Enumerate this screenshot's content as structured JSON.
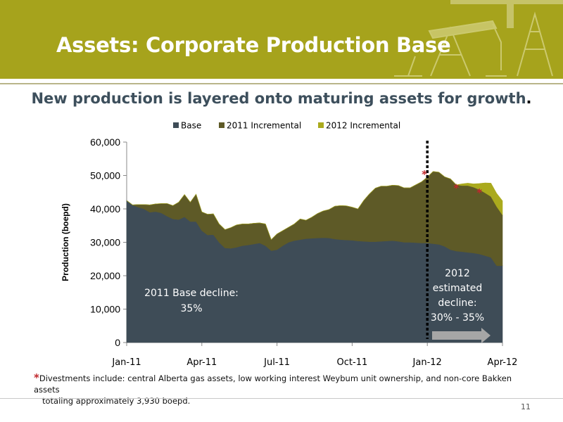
{
  "header": {
    "title": "Assets: Corporate Production Base"
  },
  "subtitle": {
    "text": "New production is layered onto maturing assets for growth",
    "end": "."
  },
  "colors": {
    "base": "#3e4c57",
    "inc2011": "#5e5a27",
    "inc2012": "#aaaa1d",
    "header": "#a6a31c",
    "star": "#c0282d",
    "arrow": "#a6a6a6"
  },
  "chart_data": {
    "type": "area",
    "stacked": true,
    "ylabel": "Production (boepd)",
    "ylim": [
      0,
      60000
    ],
    "yticks": [
      0,
      10000,
      20000,
      30000,
      40000,
      50000,
      60000
    ],
    "ytick_labels": [
      "0",
      "10,000",
      "20,000",
      "30,000",
      "40,000",
      "50,000",
      "60,000"
    ],
    "x_tick_labels": [
      {
        "label": "Jan-11",
        "at": 0
      },
      {
        "label": "Apr-11",
        "at": 13
      },
      {
        "label": "Jul-11",
        "at": 26
      },
      {
        "label": "Oct-11",
        "at": 39
      },
      {
        "label": "Jan-12",
        "at": 52
      },
      {
        "label": "Apr-12",
        "at": 65
      }
    ],
    "x_range": [
      0,
      65
    ],
    "x_unit": "weeks from Jan-11",
    "legend": [
      "Base",
      "2011 Incremental",
      "2012 Incremental"
    ],
    "legend_position": "top",
    "series": [
      {
        "name": "Base",
        "values": [
          42500,
          41200,
          40500,
          40000,
          39000,
          39200,
          38800,
          37800,
          37000,
          36800,
          37600,
          36200,
          36200,
          33500,
          32200,
          32300,
          30000,
          28300,
          28200,
          28500,
          29000,
          29200,
          29500,
          29800,
          29000,
          27500,
          27800,
          29000,
          30000,
          30500,
          30800,
          31100,
          31200,
          31300,
          31400,
          31300,
          31000,
          30800,
          30700,
          30600,
          30400,
          30300,
          30200,
          30200,
          30300,
          30400,
          30500,
          30300,
          30000,
          30000,
          29900,
          29800,
          29800,
          29600,
          29400,
          28800,
          27800,
          27400,
          27200,
          27000,
          26800,
          26500,
          26000,
          25500,
          23000,
          23000
        ]
      },
      {
        "name": "2011 Incremental",
        "values": [
          0,
          0,
          800,
          1300,
          2200,
          2300,
          2800,
          3800,
          4000,
          5200,
          6700,
          5800,
          8200,
          5600,
          6200,
          6200,
          5500,
          5500,
          6200,
          6700,
          6500,
          6300,
          6200,
          6000,
          6500,
          3300,
          4700,
          4500,
          4500,
          5000,
          6200,
          5500,
          6300,
          7300,
          8000,
          8500,
          9800,
          10200,
          10200,
          9900,
          9600,
          12200,
          14300,
          16000,
          16500,
          16400,
          16600,
          16700,
          16300,
          16300,
          17300,
          18300,
          19700,
          21600,
          21600,
          20800,
          21200,
          19800,
          19800,
          20000,
          19700,
          19300,
          18800,
          18200,
          17700,
          15200
        ]
      },
      {
        "name": "2012 Incremental",
        "values": [
          0,
          0,
          0,
          0,
          0,
          0,
          0,
          0,
          0,
          0,
          0,
          0,
          0,
          0,
          0,
          0,
          0,
          0,
          0,
          0,
          0,
          0,
          0,
          0,
          0,
          0,
          0,
          0,
          0,
          0,
          0,
          0,
          0,
          0,
          0,
          0,
          0,
          0,
          0,
          0,
          0,
          0,
          0,
          0,
          0,
          0,
          0,
          0,
          0,
          0,
          0,
          0,
          0,
          0,
          0,
          0,
          0,
          0,
          500,
          700,
          1000,
          1800,
          3000,
          4000,
          3900,
          4200
        ]
      }
    ],
    "divider_at": 52,
    "annotations": [
      {
        "name": "base-decline",
        "lines": [
          "2011 Base decline:",
          "35%"
        ]
      },
      {
        "name": "estimated-decline",
        "lines": [
          "2012",
          "estimated",
          "decline:",
          "30% - 35%"
        ]
      }
    ],
    "stars": [
      {
        "x": 51.5,
        "y": 51000
      },
      {
        "x": 57,
        "y": 46800
      },
      {
        "x": 61,
        "y": 45500
      }
    ]
  },
  "footnote": {
    "star": "*",
    "line1": "Divestments include: central Alberta gas assets, low working interest Weybum unit ownership, and non-core Bakken assets",
    "line2": "totaling approximately 3,930 boepd."
  },
  "page_number": "11"
}
